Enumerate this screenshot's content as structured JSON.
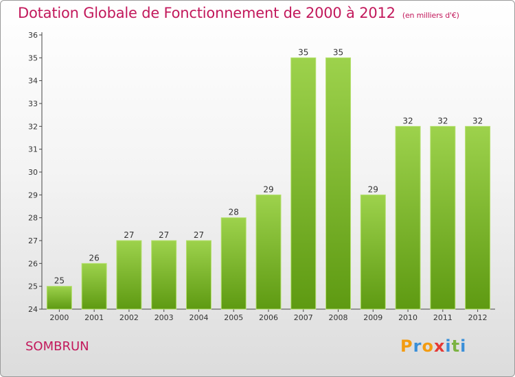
{
  "header": {
    "title": "Dotation Globale de Fonctionnement de 2000 à 2012",
    "subtitle": "(en milliers d'€)"
  },
  "footer": {
    "city": "SOMBRUN",
    "logo_text": "Proxiti"
  },
  "colors": {
    "title": "#c2185b",
    "bar_top": "#9dd24c",
    "bar_bottom": "#5e9a12"
  },
  "chart_data": {
    "type": "bar",
    "title": "Dotation Globale de Fonctionnement de 2000 à 2012",
    "subtitle": "(en milliers d'€)",
    "categories": [
      "2000",
      "2001",
      "2002",
      "2003",
      "2004",
      "2005",
      "2006",
      "2007",
      "2008",
      "2009",
      "2010",
      "2011",
      "2012"
    ],
    "values": [
      25,
      26,
      27,
      27,
      27,
      28,
      29,
      35,
      35,
      29,
      32,
      32,
      32
    ],
    "ylim": [
      24,
      36
    ],
    "yticks": [
      24,
      25,
      26,
      27,
      28,
      29,
      30,
      31,
      32,
      33,
      34,
      35,
      36
    ],
    "grid": false,
    "xlabel": "",
    "ylabel": ""
  }
}
